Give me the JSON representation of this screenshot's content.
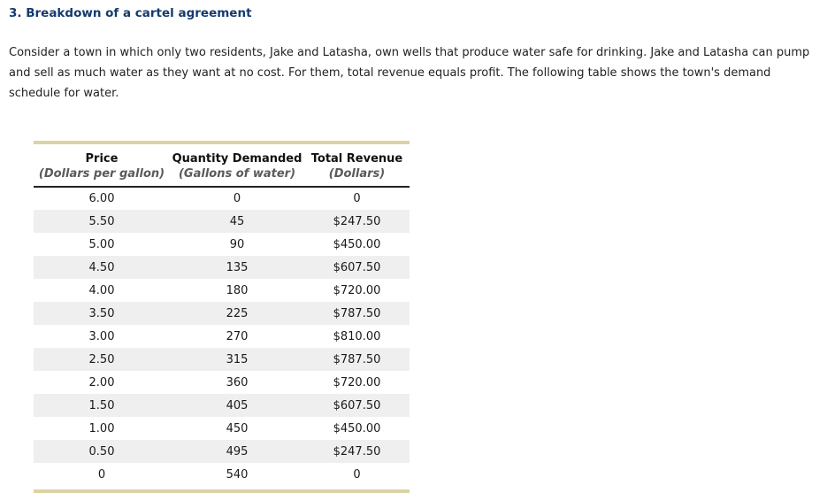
{
  "page": {
    "title": "3. Breakdown of a cartel agreement",
    "intro": "Consider a town in which only two residents, Jake and Latasha, own wells that produce water safe for drinking. Jake and Latasha can pump and sell as much water as they want at no cost. For them, total revenue equals profit. The following table shows the town's demand schedule for water."
  },
  "colors": {
    "title_text": "#143a6e",
    "body_text": "#222222",
    "table_border_accent": "#dbd3a3",
    "row_stripe": "#efefef",
    "subheader_text": "#5a5a5a",
    "header_underline": "#222222"
  },
  "table": {
    "columns": [
      {
        "label": "Price",
        "sublabel": "(Dollars per gallon)"
      },
      {
        "label": "Quantity Demanded",
        "sublabel": "(Gallons of water)"
      },
      {
        "label": "Total Revenue",
        "sublabel": "(Dollars)"
      }
    ],
    "rows": [
      [
        "6.00",
        "0",
        "0"
      ],
      [
        "5.50",
        "45",
        "$247.50"
      ],
      [
        "5.00",
        "90",
        "$450.00"
      ],
      [
        "4.50",
        "135",
        "$607.50"
      ],
      [
        "4.00",
        "180",
        "$720.00"
      ],
      [
        "3.50",
        "225",
        "$787.50"
      ],
      [
        "3.00",
        "270",
        "$810.00"
      ],
      [
        "2.50",
        "315",
        "$787.50"
      ],
      [
        "2.00",
        "360",
        "$720.00"
      ],
      [
        "1.50",
        "405",
        "$607.50"
      ],
      [
        "1.00",
        "450",
        "$450.00"
      ],
      [
        "0.50",
        "495",
        "$247.50"
      ],
      [
        "0",
        "540",
        "0"
      ]
    ]
  }
}
